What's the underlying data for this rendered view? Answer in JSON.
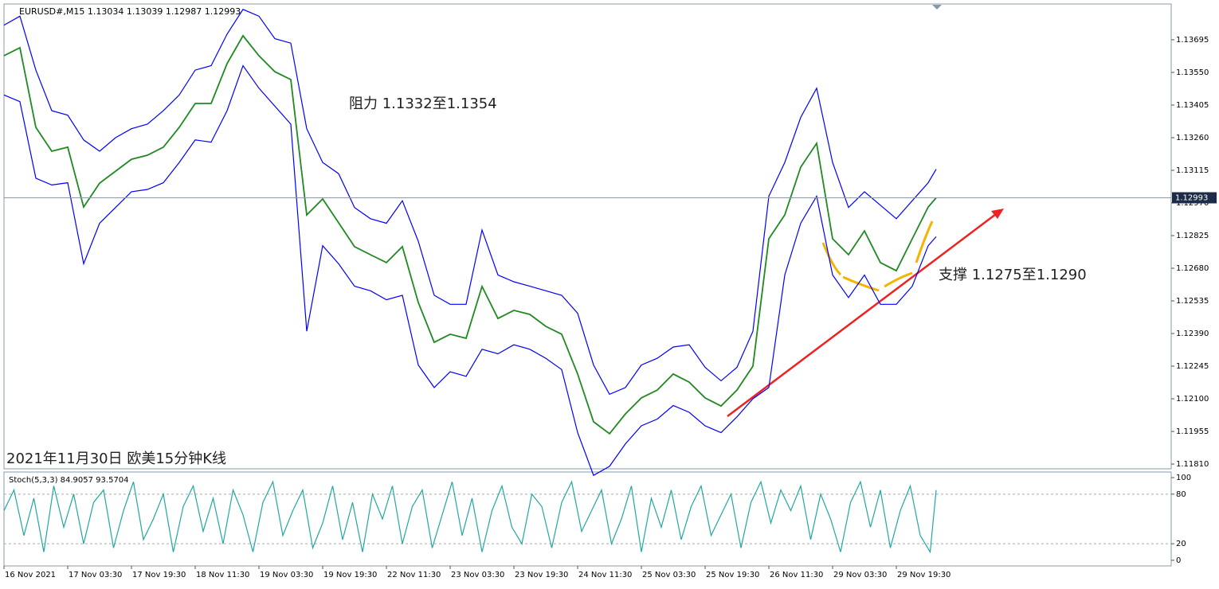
{
  "chart_data": [
    {
      "type": "line",
      "header": "EURUSD#,M15 1.13034 1.13039 1.12987 1.12993",
      "annotations": [
        "阻力 1.1332至1.1354",
        "支撑 1.1275至1.1290",
        "2021年11月30日 欧美15分钟K线"
      ],
      "last_price": 1.12993,
      "x": [
        0,
        16,
        32,
        48,
        64,
        80,
        96,
        112,
        128,
        144,
        160,
        176,
        192,
        208,
        224,
        240,
        256,
        272,
        288,
        304,
        320,
        336,
        352,
        368,
        384,
        400,
        416,
        432,
        448,
        464,
        480,
        496,
        512,
        528,
        544,
        560,
        576,
        592,
        608,
        624,
        640,
        656,
        672,
        688,
        704,
        720,
        736,
        752,
        768,
        784,
        800,
        816,
        832,
        848,
        864,
        880,
        896,
        912,
        928,
        936
      ],
      "series": [
        {
          "name": "Close",
          "color": "#1f8a1f",
          "values": [
            1.13624,
            1.1366,
            1.13306,
            1.132,
            1.13218,
            1.12952,
            1.13058,
            1.13111,
            1.13164,
            1.13182,
            1.13218,
            1.13306,
            1.13412,
            1.13412,
            1.13589,
            1.13713,
            1.13624,
            1.13553,
            1.13518,
            1.12917,
            1.12988,
            1.12882,
            1.12776,
            1.1274,
            1.12705,
            1.12776,
            1.12528,
            1.12351,
            1.12387,
            1.12369,
            1.12599,
            1.12457,
            1.12493,
            1.12475,
            1.12422,
            1.12387,
            1.1221,
            1.11998,
            1.11945,
            1.12033,
            1.12104,
            1.12139,
            1.1221,
            1.12174,
            1.12104,
            1.12068,
            1.12139,
            1.12245,
            1.12811,
            1.12917,
            1.13129,
            1.13235,
            1.12811,
            1.1274,
            1.12846,
            1.12705,
            1.12669,
            1.12811,
            1.12952,
            1.12993
          ]
        },
        {
          "name": "Upper",
          "color": "#0000ff",
          "values": [
            1.1376,
            1.138,
            1.1356,
            1.1338,
            1.1336,
            1.1325,
            1.132,
            1.1326,
            1.133,
            1.1332,
            1.1338,
            1.1345,
            1.1356,
            1.1358,
            1.1372,
            1.1383,
            1.138,
            1.137,
            1.1368,
            1.133,
            1.1315,
            1.131,
            1.1295,
            1.129,
            1.1288,
            1.1298,
            1.128,
            1.1256,
            1.1252,
            1.1252,
            1.1285,
            1.1265,
            1.1262,
            1.126,
            1.1258,
            1.1256,
            1.1248,
            1.1225,
            1.1212,
            1.1215,
            1.1225,
            1.1228,
            1.1233,
            1.1234,
            1.1224,
            1.1218,
            1.1224,
            1.124,
            1.13,
            1.1315,
            1.1335,
            1.1348,
            1.1315,
            1.1295,
            1.1302,
            1.1296,
            1.129,
            1.1298,
            1.1306,
            1.1312
          ]
        },
        {
          "name": "Lower",
          "color": "#0000ff",
          "values": [
            1.1345,
            1.1342,
            1.1308,
            1.1305,
            1.1306,
            1.127,
            1.1288,
            1.1295,
            1.1302,
            1.1303,
            1.1306,
            1.1315,
            1.1325,
            1.1324,
            1.1338,
            1.1358,
            1.1348,
            1.134,
            1.1332,
            1.124,
            1.1278,
            1.127,
            1.126,
            1.1258,
            1.1254,
            1.1256,
            1.1225,
            1.1215,
            1.1222,
            1.122,
            1.1232,
            1.123,
            1.1234,
            1.1232,
            1.1228,
            1.1223,
            1.1195,
            1.1176,
            1.118,
            1.119,
            1.1198,
            1.1201,
            1.1207,
            1.1204,
            1.1198,
            1.1195,
            1.1202,
            1.121,
            1.1215,
            1.1265,
            1.1288,
            1.13,
            1.1265,
            1.1255,
            1.1265,
            1.1252,
            1.1252,
            1.126,
            1.1278,
            1.1282
          ]
        }
      ],
      "xlim": [
        0,
        1172
      ],
      "ylim": [
        1.11789,
        1.13854
      ],
      "xticks": [
        {
          "value": 0,
          "label": "16 Nov 2021"
        },
        {
          "value": 64,
          "label": "17 Nov 03:30"
        },
        {
          "value": 128,
          "label": "17 Nov 19:30"
        },
        {
          "value": 192,
          "label": "18 Nov 11:30"
        },
        {
          "value": 256,
          "label": "19 Nov 03:30"
        },
        {
          "value": 320,
          "label": "19 Nov 19:30"
        },
        {
          "value": 384,
          "label": "22 Nov 11:30"
        },
        {
          "value": 448,
          "label": "23 Nov 03:30"
        },
        {
          "value": 512,
          "label": "23 Nov 19:30"
        },
        {
          "value": 576,
          "label": "24 Nov 11:30"
        },
        {
          "value": 640,
          "label": "25 Nov 03:30"
        },
        {
          "value": 704,
          "label": "25 Nov 19:30"
        },
        {
          "value": 768,
          "label": "26 Nov 11:30"
        },
        {
          "value": 832,
          "label": "29 Nov 03:30"
        },
        {
          "value": 896,
          "label": "29 Nov 19:30"
        }
      ],
      "yticks": [
        {
          "value": 1.13695,
          "label": "1.13695"
        },
        {
          "value": 1.1355,
          "label": "1.13550"
        },
        {
          "value": 1.13405,
          "label": "1.13405"
        },
        {
          "value": 1.1326,
          "label": "1.13260"
        },
        {
          "value": 1.13115,
          "label": "1.13115"
        },
        {
          "value": 1.1297,
          "label": "1.12970"
        },
        {
          "value": 1.12825,
          "label": "1.12825"
        },
        {
          "value": 1.1268,
          "label": "1.12680"
        },
        {
          "value": 1.12535,
          "label": "1.12535"
        },
        {
          "value": 1.1239,
          "label": "1.12390"
        },
        {
          "value": 1.12245,
          "label": "1.12245"
        },
        {
          "value": 1.121,
          "label": "1.12100"
        },
        {
          "value": 1.11955,
          "label": "1.11955"
        },
        {
          "value": 1.1181,
          "label": "1.11810"
        }
      ]
    },
    {
      "type": "line",
      "title": "Stoch(5,3,3) 84.9057 93.5704",
      "x": [
        0,
        10,
        20,
        30,
        40,
        50,
        60,
        70,
        80,
        90,
        100,
        110,
        120,
        130,
        140,
        150,
        160,
        170,
        180,
        190,
        200,
        210,
        220,
        230,
        240,
        250,
        260,
        270,
        280,
        290,
        300,
        310,
        320,
        330,
        340,
        350,
        360,
        370,
        380,
        390,
        400,
        410,
        420,
        430,
        440,
        450,
        460,
        470,
        480,
        490,
        500,
        510,
        520,
        530,
        540,
        550,
        560,
        570,
        580,
        590,
        600,
        610,
        620,
        630,
        640,
        650,
        660,
        670,
        680,
        690,
        700,
        710,
        720,
        730,
        740,
        750,
        760,
        770,
        780,
        790,
        800,
        810,
        820,
        830,
        840,
        850,
        860,
        870,
        880,
        890,
        900,
        910,
        920,
        930,
        936
      ],
      "series": [
        {
          "name": "%K",
          "color": "#20a8a0",
          "values": [
            60,
            85,
            30,
            75,
            10,
            90,
            40,
            80,
            20,
            70,
            85,
            15,
            60,
            95,
            25,
            50,
            80,
            10,
            65,
            90,
            35,
            75,
            20,
            85,
            55,
            10,
            70,
            95,
            30,
            60,
            85,
            15,
            45,
            90,
            25,
            70,
            10,
            80,
            50,
            90,
            20,
            65,
            85,
            15,
            55,
            95,
            30,
            75,
            10,
            60,
            90,
            40,
            20,
            80,
            65,
            15,
            70,
            95,
            35,
            60,
            85,
            20,
            50,
            90,
            10,
            75,
            40,
            85,
            25,
            65,
            90,
            30,
            55,
            80,
            15,
            70,
            95,
            45,
            85,
            60,
            90,
            25,
            80,
            50,
            10,
            70,
            95,
            40,
            85,
            15,
            60,
            90,
            30,
            10,
            84.9057
          ]
        }
      ],
      "levels": [
        80,
        20
      ],
      "xlim": [
        0,
        1172
      ],
      "ylim": [
        -6.8,
        106.8
      ],
      "yticks": [
        100,
        80,
        20,
        0
      ]
    }
  ]
}
